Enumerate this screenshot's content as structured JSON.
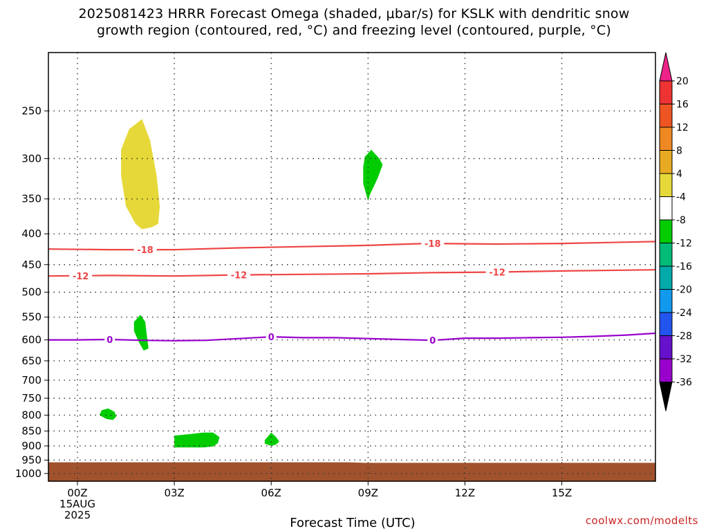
{
  "chart_data": {
    "type": "contour",
    "title_line1": "2025081423 HRRR Forecast Omega (shaded, μbar/s) for KSLK with dendritic snow",
    "title_line2": "growth region (contoured, red, °C) and freezing level (contoured, purple, °C)",
    "xlabel": "Forecast Time (UTC)",
    "credit": "coolwx.com/modelts",
    "xlim": [
      -0.9,
      17.9
    ],
    "x_ticks": [
      {
        "x": 0,
        "label": "00Z",
        "sublabels": [
          "15AUG",
          "2025"
        ]
      },
      {
        "x": 3,
        "label": "03Z"
      },
      {
        "x": 6,
        "label": "06Z"
      },
      {
        "x": 9,
        "label": "09Z"
      },
      {
        "x": 12,
        "label": "12Z"
      },
      {
        "x": 15,
        "label": "15Z"
      }
    ],
    "y_ticks": [
      {
        "p": 250,
        "label": "250"
      },
      {
        "p": 300,
        "label": "300"
      },
      {
        "p": 350,
        "label": "350"
      },
      {
        "p": 400,
        "label": "400"
      },
      {
        "p": 450,
        "label": "450"
      },
      {
        "p": 500,
        "label": "500"
      },
      {
        "p": 550,
        "label": "550"
      },
      {
        "p": 600,
        "label": "600"
      },
      {
        "p": 650,
        "label": "650"
      },
      {
        "p": 700,
        "label": "700"
      },
      {
        "p": 750,
        "label": "750"
      },
      {
        "p": 800,
        "label": "800"
      },
      {
        "p": 850,
        "label": "850"
      },
      {
        "p": 900,
        "label": "900"
      },
      {
        "p": 950,
        "label": "950"
      },
      {
        "p": 1000,
        "label": "1000"
      }
    ],
    "ylim": [
      200,
      1030
    ],
    "y_scale": "log-pressure (inverted)",
    "grid": true,
    "contours": [
      {
        "name": "-18",
        "color": "#ee4444",
        "points": [
          [
            -0.9,
            424
          ],
          [
            1,
            425
          ],
          [
            2,
            425
          ],
          [
            3,
            425
          ],
          [
            5,
            422
          ],
          [
            7,
            420
          ],
          [
            9,
            418
          ],
          [
            10.8,
            415
          ],
          [
            13,
            416
          ],
          [
            15,
            415
          ],
          [
            17.9,
            412
          ]
        ],
        "labels": [
          {
            "x": 2.1,
            "label": "-18"
          },
          {
            "x": 11,
            "label": "-18"
          }
        ]
      },
      {
        "name": "-12",
        "color": "#ee4444",
        "points": [
          [
            -0.9,
            470
          ],
          [
            1,
            469
          ],
          [
            3,
            470
          ],
          [
            5,
            468
          ],
          [
            7,
            467
          ],
          [
            9,
            466
          ],
          [
            11,
            464
          ],
          [
            13,
            463
          ],
          [
            15,
            461
          ],
          [
            17.9,
            459
          ]
        ],
        "labels": [
          {
            "x": 0.1,
            "label": "-12"
          },
          {
            "x": 5,
            "label": "-12"
          },
          {
            "x": 13,
            "label": "-12"
          }
        ]
      },
      {
        "name": "0",
        "color": "#9900cc",
        "points": [
          [
            -0.9,
            600
          ],
          [
            0,
            600
          ],
          [
            1,
            599
          ],
          [
            2,
            601
          ],
          [
            3,
            602
          ],
          [
            4,
            601
          ],
          [
            5,
            597
          ],
          [
            6,
            593
          ],
          [
            7,
            595
          ],
          [
            8,
            595
          ],
          [
            9,
            597
          ],
          [
            10,
            599
          ],
          [
            11,
            601
          ],
          [
            12,
            596
          ],
          [
            13,
            596
          ],
          [
            14,
            595
          ],
          [
            15,
            594
          ],
          [
            16,
            592
          ],
          [
            17,
            589
          ],
          [
            17.9,
            585
          ]
        ],
        "labels": [
          {
            "x": 1,
            "label": "0"
          },
          {
            "x": 6,
            "label": "0"
          },
          {
            "x": 11,
            "label": "0"
          }
        ]
      }
    ],
    "shaded_regions": [
      {
        "level": "4 to 8",
        "color": "#e6d838",
        "points": [
          [
            2.0,
            258
          ],
          [
            2.25,
            280
          ],
          [
            2.45,
            320
          ],
          [
            2.55,
            360
          ],
          [
            2.5,
            385
          ],
          [
            2.3,
            390
          ],
          [
            2.0,
            393
          ],
          [
            1.8,
            385
          ],
          [
            1.5,
            360
          ],
          [
            1.35,
            320
          ],
          [
            1.35,
            290
          ],
          [
            1.6,
            268
          ],
          [
            2.0,
            258
          ]
        ]
      },
      {
        "level": "-8 to -4",
        "color": "#00cc00",
        "points": [
          [
            9.1,
            290
          ],
          [
            9.35,
            300
          ],
          [
            9.45,
            307
          ],
          [
            9.3,
            323
          ],
          [
            9.05,
            345
          ],
          [
            9.0,
            353
          ],
          [
            8.85,
            330
          ],
          [
            8.85,
            310
          ],
          [
            8.9,
            298
          ],
          [
            9.1,
            290
          ]
        ]
      },
      {
        "level": "-8 to -4",
        "color": "#00cc00",
        "points": [
          [
            1.95,
            545
          ],
          [
            2.1,
            560
          ],
          [
            2.15,
            590
          ],
          [
            2.2,
            620
          ],
          [
            2.05,
            625
          ],
          [
            1.9,
            605
          ],
          [
            1.75,
            580
          ],
          [
            1.75,
            560
          ],
          [
            1.95,
            545
          ]
        ]
      },
      {
        "level": "-8 to -4",
        "color": "#00cc00",
        "points": [
          [
            0.95,
            780
          ],
          [
            1.15,
            790
          ],
          [
            1.2,
            805
          ],
          [
            1.1,
            815
          ],
          [
            0.9,
            812
          ],
          [
            0.68,
            800
          ],
          [
            0.75,
            785
          ],
          [
            0.95,
            780
          ]
        ]
      },
      {
        "level": "-8 to -4",
        "color": "#00cc00",
        "points": [
          [
            3.0,
            865
          ],
          [
            3.5,
            860
          ],
          [
            3.9,
            855
          ],
          [
            4.2,
            855
          ],
          [
            4.4,
            870
          ],
          [
            4.35,
            890
          ],
          [
            4.2,
            902
          ],
          [
            3.9,
            905
          ],
          [
            3.5,
            905
          ],
          [
            3.0,
            905
          ],
          [
            3.0,
            865
          ]
        ]
      },
      {
        "level": "-8 to -4",
        "color": "#00cc00",
        "points": [
          [
            6.0,
            855
          ],
          [
            6.15,
            870
          ],
          [
            6.25,
            885
          ],
          [
            6.15,
            895
          ],
          [
            6.0,
            900
          ],
          [
            5.8,
            892
          ],
          [
            5.8,
            880
          ],
          [
            5.9,
            868
          ],
          [
            6.0,
            855
          ]
        ]
      }
    ],
    "terrain": {
      "color": "#a0522d",
      "points": [
        [
          -0.9,
          958
        ],
        [
          8.4,
          958
        ],
        [
          8.9,
          960
        ],
        [
          17.9,
          960
        ]
      ]
    },
    "colorbar": {
      "ticks": [
        "20",
        "16",
        "12",
        "8",
        "4",
        "-4",
        "-8",
        "-12",
        "-16",
        "-20",
        "-24",
        "-28",
        "-32",
        "-36"
      ],
      "colors": [
        "#ee3333",
        "#ee5522",
        "#ee8822",
        "#e8aa22",
        "#e6d838",
        "#ffffff",
        "#00cc00",
        "#00bb77",
        "#00aaaa",
        "#1199ee",
        "#2255ee",
        "#6611cc",
        "#9900cc",
        "#aaaaaa"
      ],
      "top_arrow_color": "#ee2288",
      "bottom_arrow_color": "#000000"
    }
  }
}
